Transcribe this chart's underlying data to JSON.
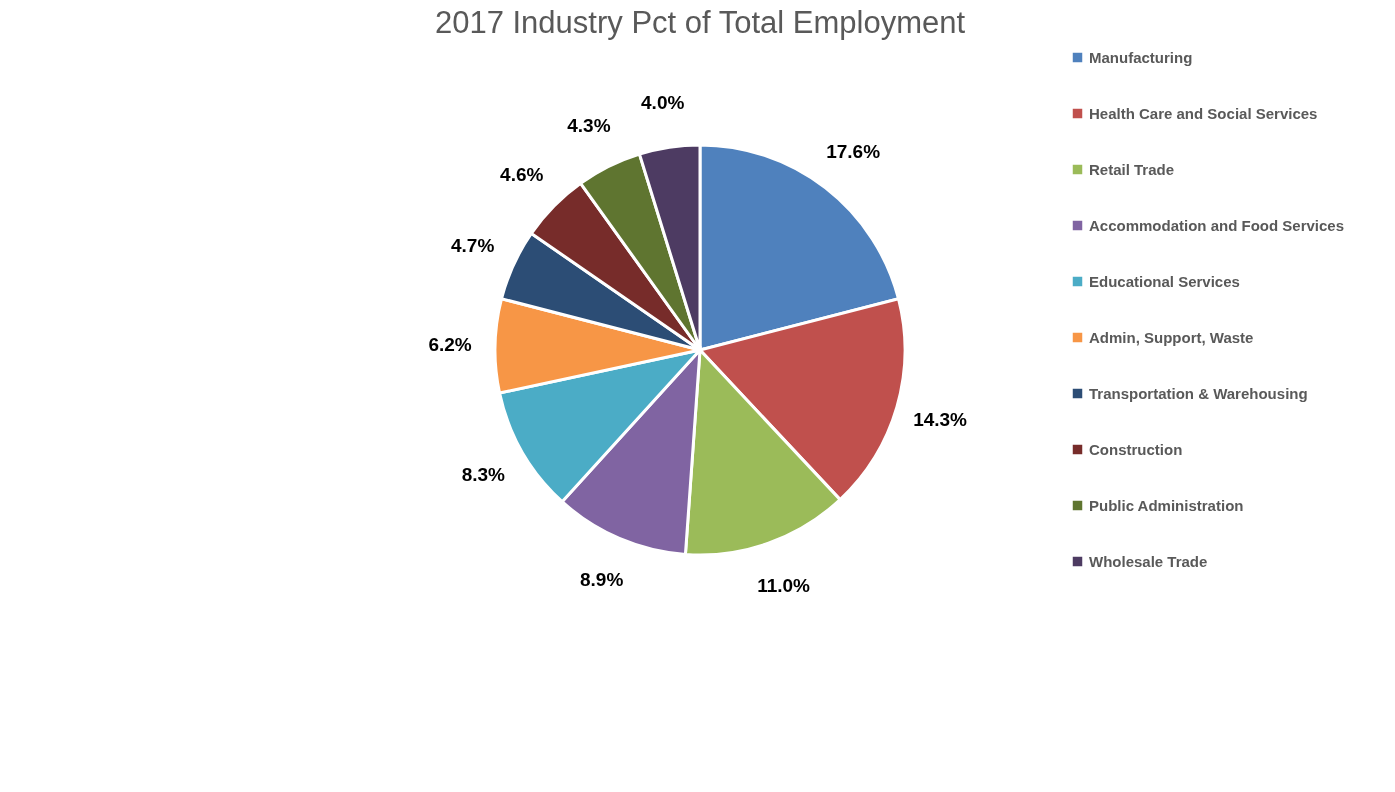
{
  "chart_data": {
    "type": "pie",
    "title": "2017 Industry Pct of Total Employment",
    "categories": [
      "Manufacturing",
      "Health Care and Social Services",
      "Retail Trade",
      "Accommodation and Food Services",
      "Educational Services",
      "Admin, Support, Waste",
      "Transportation & Warehousing",
      "Construction",
      "Public Administration",
      "Wholesale Trade"
    ],
    "values": [
      17.6,
      14.3,
      11.0,
      8.9,
      8.3,
      6.2,
      4.7,
      4.6,
      4.3,
      4.0
    ],
    "value_labels": [
      "17.6%",
      "14.3%",
      "11.0%",
      "8.9%",
      "8.3%",
      "6.2%",
      "4.7%",
      "4.6%",
      "4.3%",
      "4.0%"
    ],
    "colors": [
      "#4f81bd",
      "#c0504d",
      "#9bbb59",
      "#8064a2",
      "#4bacc6",
      "#f79646",
      "#2c4d75",
      "#772c2a",
      "#5f7530",
      "#4d3b62"
    ],
    "legend": "right"
  }
}
